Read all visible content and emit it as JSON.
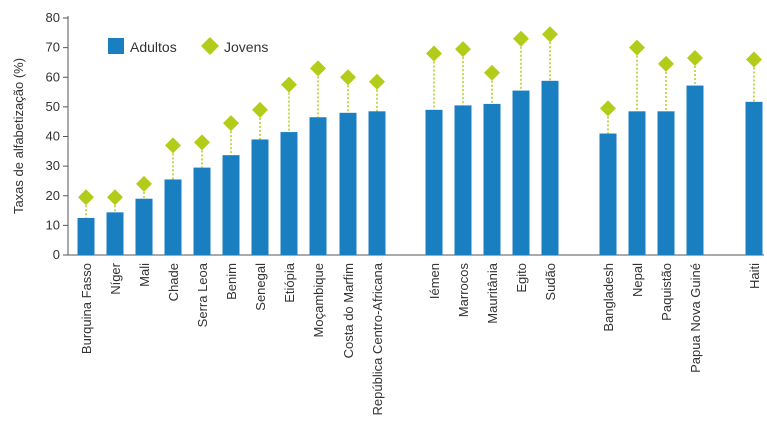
{
  "chart_data": {
    "type": "bar",
    "ylabel": "Taxas de alfabetização (%)",
    "ylim": [
      0,
      80
    ],
    "yticks": [
      "0",
      "10",
      "20",
      "30",
      "40",
      "50",
      "60",
      "70",
      "80"
    ],
    "grid": false,
    "legend_position": "top-left",
    "groups": [
      [
        "Burquina Fasso",
        "Níger",
        "Mali",
        "Chade",
        "Serra Leoa",
        "Benim",
        "Senegal",
        "Etiópia",
        "Moçambique",
        "Costa do Marfim",
        "República Centro-Africana"
      ],
      [
        "Iémen",
        "Marrocos",
        "Mauritânia",
        "Egito",
        "Sudão"
      ],
      [
        "Bangladesh",
        "Nepal",
        "Paquistão",
        "Papua Nova Guiné"
      ],
      [
        "Haiti"
      ]
    ],
    "categories": [
      "Burquina Fasso",
      "Níger",
      "Mali",
      "Chade",
      "Serra Leoa",
      "Benim",
      "Senegal",
      "Etiópia",
      "Moçambique",
      "Costa do Marfim",
      "República Centro-Africana",
      "Iémen",
      "Marrocos",
      "Mauritânia",
      "Egito",
      "Sudão",
      "Bangladesh",
      "Nepal",
      "Paquistão",
      "Papua Nova Guiné",
      "Haiti"
    ],
    "series": [
      {
        "name": "Adultos",
        "type": "bar",
        "color": "#1a7fc1",
        "values": [
          12.5,
          14.4,
          19.0,
          25.5,
          29.5,
          33.7,
          39.0,
          41.5,
          46.5,
          48.0,
          48.5,
          49.0,
          50.5,
          51.0,
          55.5,
          58.8,
          41.0,
          48.5,
          48.5,
          57.2,
          51.7
        ]
      },
      {
        "name": "Jovens",
        "type": "marker",
        "color": "#b3cc1a",
        "values": [
          19.5,
          19.5,
          24.0,
          37.0,
          38.0,
          44.5,
          49.0,
          57.5,
          63.0,
          60.0,
          58.5,
          68.0,
          69.5,
          61.5,
          73.0,
          74.5,
          49.5,
          70.0,
          64.5,
          66.5,
          66.0
        ]
      }
    ]
  }
}
